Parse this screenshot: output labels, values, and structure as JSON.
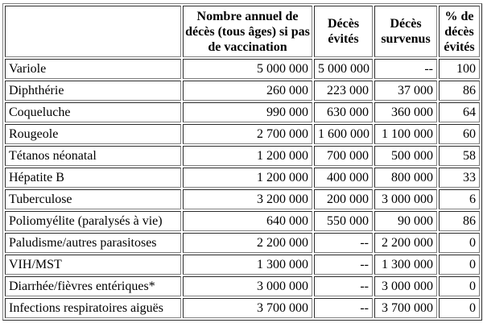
{
  "table": {
    "title_semantic": "annual-deaths-with-and-without-vaccination",
    "headers": [
      "",
      "Nombre annuel de décès (tous âges) si pas de vaccination",
      "Décès évités",
      "Décès survenus",
      "% de décès évités"
    ],
    "rows": [
      [
        "Variole",
        "5 000 000",
        "5 000 000",
        "--",
        "100"
      ],
      [
        "Diphthérie",
        "260 000",
        "223 000",
        "37 000",
        "86"
      ],
      [
        "Coqueluche",
        "990 000",
        "630 000",
        "360 000",
        "64"
      ],
      [
        "Rougeole",
        "2 700 000",
        "1 600 000",
        "1 100 000",
        "60"
      ],
      [
        "Tétanos néonatal",
        "1 200 000",
        "700 000",
        "500 000",
        "58"
      ],
      [
        "Hépatite B",
        "1 200 000",
        "400 000",
        "800 000",
        "33"
      ],
      [
        "Tuberculose",
        "3 200 000",
        "200 000",
        "3 000 000",
        "6"
      ],
      [
        "Poliomyélite (paralysés à vie)",
        "640 000",
        "550 000",
        "90 000",
        "86"
      ],
      [
        "Paludisme/autres parasitoses",
        "2 200 000",
        "--",
        "2 200 000",
        "0"
      ],
      [
        "VIH/MST",
        "1 300 000",
        "--",
        "1 300 000",
        "0"
      ],
      [
        "Diarrhée/fièvres entériques*",
        "3 000 000",
        "--",
        "3 000 000",
        "0"
      ],
      [
        "Infections respiratoires aiguës",
        "3 700 000",
        "--",
        "3 700 000",
        "0"
      ]
    ],
    "colors": {
      "border": "#808080",
      "text": "#000000",
      "background": "#ffffff"
    }
  }
}
